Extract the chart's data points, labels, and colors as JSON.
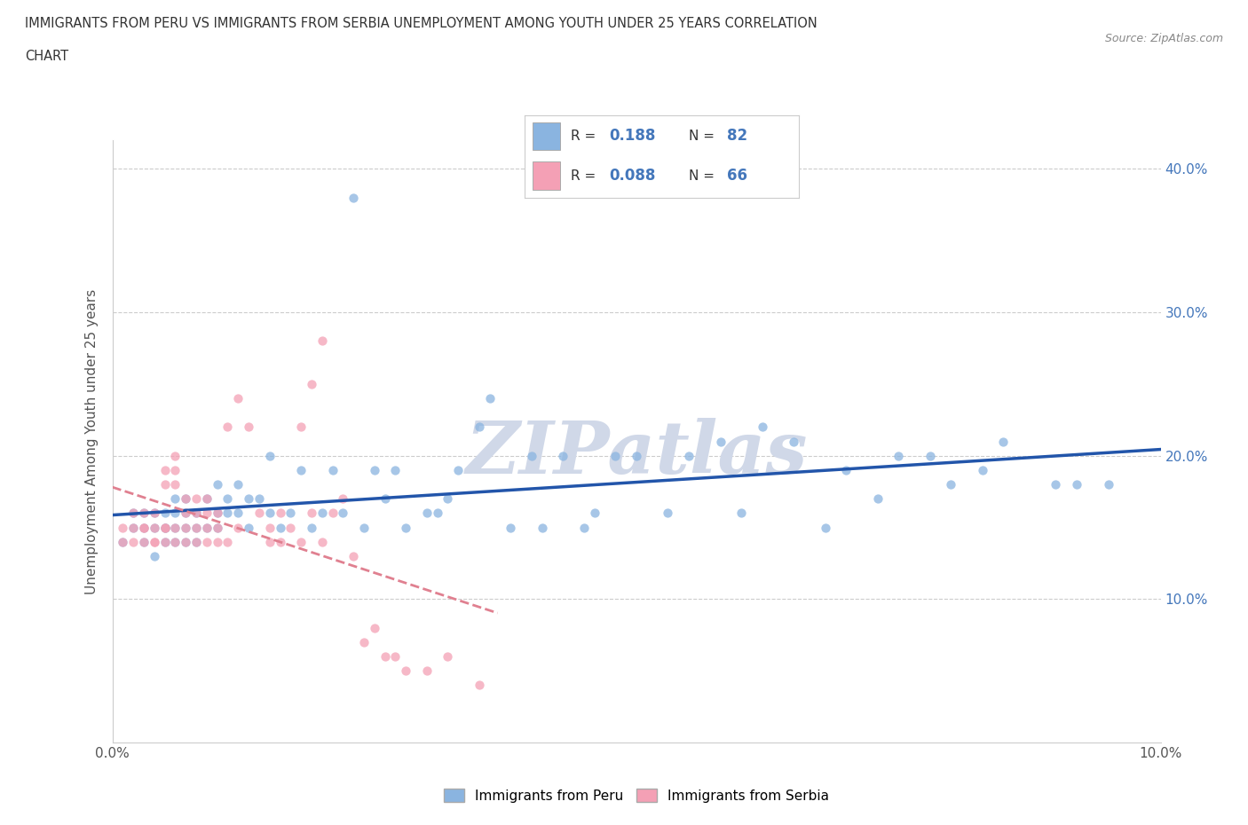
{
  "title_line1": "IMMIGRANTS FROM PERU VS IMMIGRANTS FROM SERBIA UNEMPLOYMENT AMONG YOUTH UNDER 25 YEARS CORRELATION",
  "title_line2": "CHART",
  "source_text": "Source: ZipAtlas.com",
  "ylabel": "Unemployment Among Youth under 25 years",
  "xlim": [
    0.0,
    0.1
  ],
  "ylim": [
    0.0,
    0.42
  ],
  "xticks": [
    0.0,
    0.02,
    0.04,
    0.06,
    0.08,
    0.1
  ],
  "xtick_labels": [
    "0.0%",
    "",
    "",
    "",
    "",
    "10.0%"
  ],
  "yticks": [
    0.1,
    0.2,
    0.3,
    0.4
  ],
  "ytick_labels": [
    "10.0%",
    "20.0%",
    "30.0%",
    "40.0%"
  ],
  "grid_color": "#cccccc",
  "background_color": "#ffffff",
  "watermark_text": "ZIPatlas",
  "watermark_color": "#d0d8e8",
  "peru_color": "#8ab4e0",
  "serbia_color": "#f4a0b5",
  "peru_line_color": "#2255aa",
  "serbia_line_color": "#e08090",
  "ytick_color": "#4477bb",
  "peru_R": 0.188,
  "peru_N": 82,
  "serbia_R": 0.088,
  "serbia_N": 66,
  "legend_label_peru": "Immigrants from Peru",
  "legend_label_serbia": "Immigrants from Serbia",
  "peru_x": [
    0.001,
    0.002,
    0.002,
    0.003,
    0.003,
    0.003,
    0.004,
    0.004,
    0.004,
    0.005,
    0.005,
    0.005,
    0.005,
    0.006,
    0.006,
    0.006,
    0.006,
    0.007,
    0.007,
    0.007,
    0.007,
    0.008,
    0.008,
    0.008,
    0.009,
    0.009,
    0.01,
    0.01,
    0.01,
    0.011,
    0.011,
    0.012,
    0.012,
    0.013,
    0.013,
    0.014,
    0.015,
    0.015,
    0.016,
    0.017,
    0.018,
    0.019,
    0.02,
    0.021,
    0.022,
    0.023,
    0.024,
    0.025,
    0.026,
    0.027,
    0.028,
    0.03,
    0.031,
    0.032,
    0.033,
    0.035,
    0.036,
    0.038,
    0.04,
    0.041,
    0.043,
    0.045,
    0.046,
    0.048,
    0.05,
    0.053,
    0.055,
    0.058,
    0.06,
    0.062,
    0.065,
    0.068,
    0.07,
    0.073,
    0.075,
    0.078,
    0.08,
    0.083,
    0.085,
    0.09,
    0.092,
    0.095
  ],
  "peru_y": [
    0.14,
    0.15,
    0.16,
    0.15,
    0.14,
    0.16,
    0.15,
    0.13,
    0.16,
    0.15,
    0.14,
    0.16,
    0.15,
    0.15,
    0.14,
    0.16,
    0.17,
    0.14,
    0.15,
    0.16,
    0.17,
    0.14,
    0.15,
    0.16,
    0.15,
    0.17,
    0.15,
    0.16,
    0.18,
    0.16,
    0.17,
    0.16,
    0.18,
    0.15,
    0.17,
    0.17,
    0.16,
    0.2,
    0.15,
    0.16,
    0.19,
    0.15,
    0.16,
    0.19,
    0.16,
    0.38,
    0.15,
    0.19,
    0.17,
    0.19,
    0.15,
    0.16,
    0.16,
    0.17,
    0.19,
    0.22,
    0.24,
    0.15,
    0.2,
    0.15,
    0.2,
    0.15,
    0.16,
    0.2,
    0.2,
    0.16,
    0.2,
    0.21,
    0.16,
    0.22,
    0.21,
    0.15,
    0.19,
    0.17,
    0.2,
    0.2,
    0.18,
    0.19,
    0.21,
    0.18,
    0.18,
    0.18
  ],
  "serbia_x": [
    0.001,
    0.001,
    0.002,
    0.002,
    0.002,
    0.003,
    0.003,
    0.003,
    0.003,
    0.004,
    0.004,
    0.004,
    0.004,
    0.005,
    0.005,
    0.005,
    0.005,
    0.005,
    0.006,
    0.006,
    0.006,
    0.006,
    0.006,
    0.007,
    0.007,
    0.007,
    0.007,
    0.008,
    0.008,
    0.008,
    0.008,
    0.009,
    0.009,
    0.009,
    0.009,
    0.01,
    0.01,
    0.01,
    0.011,
    0.011,
    0.012,
    0.012,
    0.013,
    0.014,
    0.015,
    0.015,
    0.016,
    0.016,
    0.017,
    0.018,
    0.018,
    0.019,
    0.019,
    0.02,
    0.02,
    0.021,
    0.022,
    0.023,
    0.024,
    0.025,
    0.026,
    0.027,
    0.028,
    0.03,
    0.032,
    0.035
  ],
  "serbia_y": [
    0.14,
    0.15,
    0.15,
    0.14,
    0.16,
    0.15,
    0.14,
    0.16,
    0.15,
    0.14,
    0.15,
    0.14,
    0.16,
    0.15,
    0.18,
    0.19,
    0.14,
    0.15,
    0.14,
    0.15,
    0.18,
    0.19,
    0.2,
    0.15,
    0.14,
    0.16,
    0.17,
    0.15,
    0.14,
    0.16,
    0.17,
    0.14,
    0.15,
    0.16,
    0.17,
    0.15,
    0.14,
    0.16,
    0.14,
    0.22,
    0.15,
    0.24,
    0.22,
    0.16,
    0.15,
    0.14,
    0.14,
    0.16,
    0.15,
    0.14,
    0.22,
    0.25,
    0.16,
    0.28,
    0.14,
    0.16,
    0.17,
    0.13,
    0.07,
    0.08,
    0.06,
    0.06,
    0.05,
    0.05,
    0.06,
    0.04
  ]
}
